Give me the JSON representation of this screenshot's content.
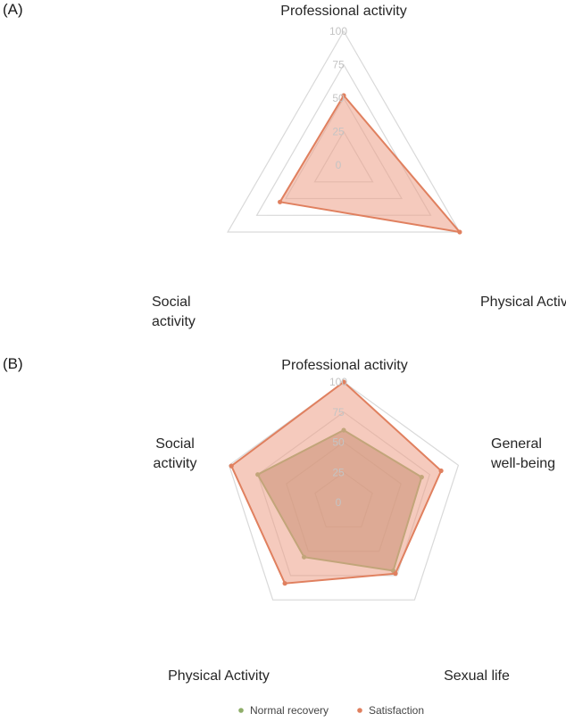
{
  "panels": [
    "(A)",
    "(B)"
  ],
  "colors": {
    "grid": "#d9d9d9",
    "satisfaction_stroke": "#e0805f",
    "satisfaction_fill": "#ec9e86",
    "normal_stroke": "#8fae6a",
    "normal_fill": "#a88b6b"
  },
  "chart_data": [
    {
      "type": "radar",
      "panel": "(A)",
      "axes": [
        [
          "Professional activity"
        ],
        [
          "Physical Activity"
        ],
        [
          "Social",
          "activity"
        ]
      ],
      "ticks": [
        "0",
        "25",
        "50",
        "75",
        "100"
      ],
      "range": [
        0,
        100
      ],
      "series": [
        {
          "name": "Satisfaction",
          "values": [
            52,
            100,
            55
          ]
        }
      ]
    },
    {
      "type": "radar",
      "panel": "(B)",
      "axes": [
        [
          "Professional activity"
        ],
        [
          "General",
          "well-being"
        ],
        [
          "Sexual life"
        ],
        [
          "Physical Activity"
        ],
        [
          "Social",
          "activity"
        ]
      ],
      "ticks": [
        "0",
        "25",
        "50",
        "75",
        "100"
      ],
      "range": [
        0,
        100
      ],
      "series": [
        {
          "name": "Normal recovery",
          "values": [
            60,
            68,
            70,
            56,
            75
          ]
        },
        {
          "name": "Satisfaction",
          "values": [
            100,
            85,
            73,
            83,
            98
          ]
        }
      ],
      "legend": [
        "Normal recovery",
        "Satisfaction"
      ]
    }
  ]
}
